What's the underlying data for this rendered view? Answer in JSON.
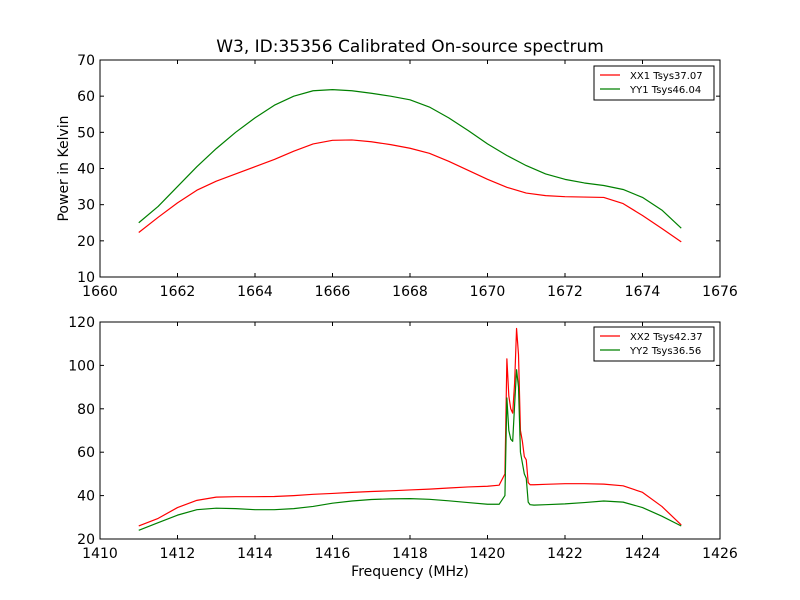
{
  "figure": {
    "title": "W3, ID:35356 Calibrated On-source spectrum"
  },
  "colors": {
    "series1": "#ff0000",
    "series2": "#008000",
    "axes": "#000000",
    "background": "#ffffff"
  },
  "chart_data": [
    {
      "type": "line",
      "title": "W3, ID:35356 Calibrated On-source spectrum",
      "xlabel": "",
      "ylabel": "Power in Kelvin",
      "xlim": [
        1660,
        1676
      ],
      "ylim": [
        10,
        70
      ],
      "xticks": [
        1660,
        1662,
        1664,
        1666,
        1668,
        1670,
        1672,
        1674,
        1676
      ],
      "yticks": [
        10,
        20,
        30,
        40,
        50,
        60,
        70
      ],
      "grid": false,
      "legend_position": "top-right",
      "series": [
        {
          "name": "XX1 Tsys37.07",
          "color": "#ff0000",
          "x": [
            1661.0,
            1661.5,
            1662.0,
            1662.5,
            1663.0,
            1663.5,
            1664.0,
            1664.5,
            1665.0,
            1665.5,
            1666.0,
            1666.5,
            1667.0,
            1667.5,
            1668.0,
            1668.5,
            1669.0,
            1669.5,
            1670.0,
            1670.5,
            1671.0,
            1671.5,
            1672.0,
            1672.5,
            1673.0,
            1673.5,
            1674.0,
            1674.5,
            1675.0
          ],
          "y": [
            22.3,
            26.5,
            30.5,
            34.0,
            36.5,
            38.5,
            40.5,
            42.5,
            44.8,
            46.8,
            47.8,
            47.9,
            47.4,
            46.6,
            45.6,
            44.2,
            42.0,
            39.5,
            37.0,
            34.8,
            33.2,
            32.5,
            32.2,
            32.1,
            32.0,
            30.3,
            27.0,
            23.4,
            19.7
          ]
        },
        {
          "name": "YY1 Tsys46.04",
          "color": "#008000",
          "x": [
            1661.0,
            1661.5,
            1662.0,
            1662.5,
            1663.0,
            1663.5,
            1664.0,
            1664.5,
            1665.0,
            1665.5,
            1666.0,
            1666.5,
            1667.0,
            1667.5,
            1668.0,
            1668.5,
            1669.0,
            1669.5,
            1670.0,
            1670.5,
            1671.0,
            1671.5,
            1672.0,
            1672.5,
            1673.0,
            1673.5,
            1674.0,
            1674.5,
            1675.0
          ],
          "y": [
            25.0,
            29.5,
            35.0,
            40.5,
            45.5,
            50.0,
            54.0,
            57.5,
            60.0,
            61.5,
            61.8,
            61.5,
            60.8,
            60.0,
            59.0,
            57.0,
            54.0,
            50.5,
            46.8,
            43.6,
            40.8,
            38.5,
            37.0,
            36.0,
            35.3,
            34.2,
            32.0,
            28.5,
            23.5
          ]
        }
      ]
    },
    {
      "type": "line",
      "title": "",
      "xlabel": "Frequency (MHz)",
      "ylabel": "",
      "xlim": [
        1410,
        1426
      ],
      "ylim": [
        20,
        120
      ],
      "xticks": [
        1410,
        1412,
        1414,
        1416,
        1418,
        1420,
        1422,
        1424,
        1426
      ],
      "yticks": [
        20,
        40,
        60,
        80,
        100,
        120
      ],
      "grid": false,
      "legend_position": "top-right",
      "series": [
        {
          "name": "XX2 Tsys42.37",
          "color": "#ff0000",
          "x": [
            1411.0,
            1411.5,
            1412.0,
            1412.5,
            1413.0,
            1413.5,
            1414.0,
            1414.5,
            1415.0,
            1415.5,
            1416.0,
            1416.5,
            1417.0,
            1417.5,
            1418.0,
            1418.5,
            1419.0,
            1419.5,
            1420.0,
            1420.3,
            1420.45,
            1420.5,
            1420.55,
            1420.6,
            1420.65,
            1420.7,
            1420.75,
            1420.8,
            1420.85,
            1420.9,
            1420.95,
            1421.0,
            1421.05,
            1421.1,
            1421.2,
            1421.5,
            1422.0,
            1422.5,
            1423.0,
            1423.5,
            1424.0,
            1424.5,
            1425.0
          ],
          "y": [
            26.0,
            29.5,
            34.5,
            37.8,
            39.3,
            39.5,
            39.5,
            39.6,
            40.0,
            40.6,
            41.0,
            41.5,
            41.9,
            42.2,
            42.6,
            43.0,
            43.5,
            44.0,
            44.3,
            44.8,
            50.0,
            103.0,
            86.0,
            80.0,
            78.0,
            92.0,
            117.0,
            105.0,
            70.0,
            65.0,
            58.0,
            56.5,
            46.0,
            45.0,
            45.0,
            45.2,
            45.5,
            45.5,
            45.3,
            44.5,
            41.5,
            35.0,
            26.5
          ]
        },
        {
          "name": "YY2 Tsys36.56",
          "color": "#008000",
          "x": [
            1411.0,
            1411.5,
            1412.0,
            1412.5,
            1413.0,
            1413.5,
            1414.0,
            1414.5,
            1415.0,
            1415.5,
            1416.0,
            1416.5,
            1417.0,
            1417.5,
            1418.0,
            1418.5,
            1419.0,
            1419.5,
            1420.0,
            1420.3,
            1420.45,
            1420.5,
            1420.55,
            1420.6,
            1420.65,
            1420.7,
            1420.75,
            1420.8,
            1420.85,
            1420.9,
            1420.95,
            1421.0,
            1421.05,
            1421.1,
            1421.2,
            1421.5,
            1422.0,
            1422.5,
            1423.0,
            1423.5,
            1424.0,
            1424.5,
            1425.0
          ],
          "y": [
            24.0,
            27.5,
            31.0,
            33.5,
            34.2,
            34.0,
            33.5,
            33.5,
            34.0,
            35.0,
            36.5,
            37.5,
            38.2,
            38.5,
            38.6,
            38.3,
            37.6,
            36.8,
            36.0,
            36.0,
            40.0,
            85.0,
            70.0,
            66.0,
            65.0,
            82.0,
            98.0,
            90.0,
            60.0,
            55.0,
            50.0,
            48.0,
            37.0,
            35.8,
            35.6,
            35.8,
            36.2,
            36.8,
            37.5,
            37.0,
            34.5,
            30.5,
            26.0
          ]
        }
      ]
    }
  ]
}
